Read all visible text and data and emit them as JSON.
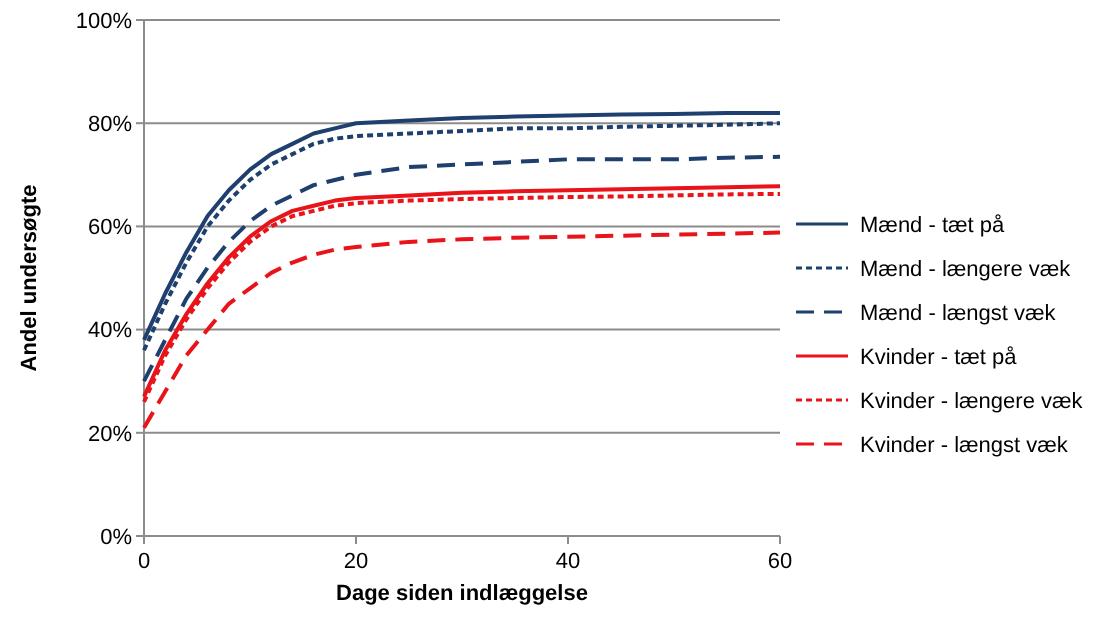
{
  "chart_data": {
    "type": "line",
    "xlabel": "Dage siden indlæggelse",
    "ylabel": "Andel undersøgte",
    "x": [
      0,
      2,
      4,
      6,
      8,
      10,
      12,
      14,
      16,
      18,
      20,
      25,
      30,
      35,
      40,
      45,
      50,
      55,
      60
    ],
    "xlim": [
      0,
      60
    ],
    "xticks": [
      0,
      20,
      40,
      60
    ],
    "ylim": [
      0,
      100
    ],
    "yticks": [
      {
        "value": 0,
        "label": "0%"
      },
      {
        "value": 20,
        "label": "20%"
      },
      {
        "value": 40,
        "label": "40%"
      },
      {
        "value": 60,
        "label": "60%"
      },
      {
        "value": 80,
        "label": "80%"
      },
      {
        "value": 100,
        "label": "100%"
      }
    ],
    "grid": "y",
    "legend": "right",
    "marker": "none",
    "series": [
      {
        "name": "Mænd - tæt på",
        "color": "#1f3f6e",
        "line_style": "solid",
        "values": [
          38,
          47,
          55,
          62,
          67,
          71,
          74,
          76,
          78,
          79,
          80,
          80.5,
          81,
          81.3,
          81.5,
          81.7,
          81.8,
          82,
          82
        ]
      },
      {
        "name": "Mænd - længere væk",
        "color": "#1f3f6e",
        "line_style": "dotted",
        "values": [
          36,
          45,
          53,
          60,
          65,
          69,
          72,
          74,
          76,
          77,
          77.5,
          78,
          78.5,
          79,
          79,
          79.3,
          79.5,
          79.7,
          80
        ]
      },
      {
        "name": "Mænd - længst væk",
        "color": "#1f3f6e",
        "line_style": "dashed",
        "values": [
          30,
          38,
          46,
          52,
          57,
          61,
          64,
          66,
          68,
          69,
          70,
          71.5,
          72,
          72.5,
          73,
          73,
          73,
          73.3,
          73.5
        ]
      },
      {
        "name": "Kvinder - tæt på",
        "color": "#e8141a",
        "line_style": "solid",
        "values": [
          27,
          36,
          43,
          49,
          54,
          58,
          61,
          63,
          64,
          65,
          65.5,
          66,
          66.5,
          66.8,
          67,
          67.2,
          67.4,
          67.6,
          67.8
        ]
      },
      {
        "name": "Kvinder - længere væk",
        "color": "#e8141a",
        "line_style": "dotted",
        "values": [
          26,
          35,
          42,
          48,
          53,
          57,
          60,
          62,
          63,
          64,
          64.5,
          65,
          65.3,
          65.5,
          65.7,
          65.8,
          66,
          66.2,
          66.3
        ]
      },
      {
        "name": "Kvinder - længst væk",
        "color": "#e8141a",
        "line_style": "dashed",
        "values": [
          21,
          28,
          35,
          40,
          45,
          48,
          51,
          53,
          54.5,
          55.5,
          56,
          57,
          57.5,
          57.8,
          58,
          58.2,
          58.4,
          58.6,
          58.8
        ]
      }
    ]
  }
}
